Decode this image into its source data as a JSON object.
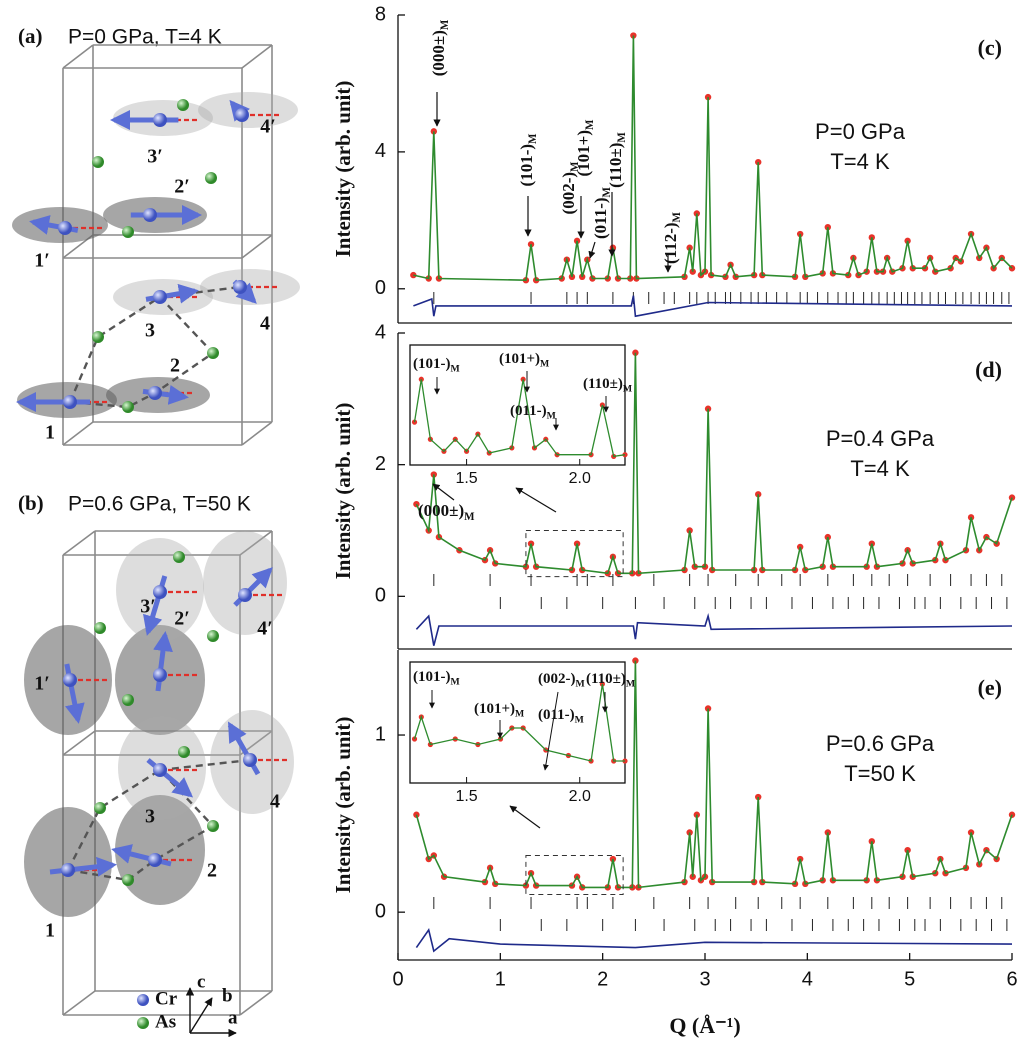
{
  "chart_data": [
    {
      "type": "line",
      "panel_label": "(c)",
      "conditions": [
        "P=0 GPa",
        "T=4 K"
      ],
      "ylabel": "Intensity (arb. unit)",
      "xlim": [
        0,
        6
      ],
      "ylim": [
        -1,
        8
      ],
      "yticks": [
        0,
        4,
        8
      ],
      "series": [
        {
          "x": [
            0.15,
            0.3,
            0.35,
            0.4,
            1.25,
            1.3,
            1.35,
            1.6,
            1.65,
            1.7,
            1.75,
            1.8,
            1.85,
            1.9,
            2.05,
            2.1,
            2.15,
            2.27,
            2.3,
            2.33,
            2.8,
            2.85,
            2.88,
            2.92,
            2.96,
            3.0,
            3.03,
            3.06,
            3.2,
            3.25,
            3.3,
            3.48,
            3.52,
            3.56,
            3.88,
            3.93,
            3.98,
            4.15,
            4.2,
            4.25,
            4.4,
            4.45,
            4.5,
            4.58,
            4.63,
            4.68,
            4.74,
            4.78,
            4.83,
            4.93,
            4.98,
            5.03,
            5.15,
            5.2,
            5.25,
            5.4,
            5.45,
            5.5,
            5.6,
            5.68,
            5.75,
            5.82,
            5.9,
            6.0
          ],
          "values": [
            0.4,
            0.3,
            4.6,
            0.3,
            0.25,
            1.3,
            0.25,
            0.3,
            0.85,
            0.35,
            1.4,
            0.35,
            0.85,
            0.3,
            0.3,
            1.2,
            0.3,
            0.3,
            7.4,
            0.3,
            0.35,
            1.2,
            0.5,
            2.2,
            0.4,
            0.5,
            5.6,
            0.4,
            0.35,
            0.7,
            0.35,
            0.4,
            3.7,
            0.4,
            0.35,
            1.6,
            0.35,
            0.45,
            1.8,
            0.45,
            0.4,
            0.9,
            0.4,
            0.5,
            1.5,
            0.5,
            0.5,
            0.9,
            0.5,
            0.6,
            1.4,
            0.6,
            0.6,
            0.9,
            0.5,
            0.6,
            0.9,
            0.8,
            1.6,
            0.9,
            1.2,
            0.6,
            0.9,
            0.6
          ],
          "color": "#2e8b2e",
          "marker_color": "#e8332a"
        },
        {
          "x": [
            0.15,
            0.33,
            0.35,
            0.37,
            2.28,
            2.3,
            2.32,
            3.03,
            6.0
          ],
          "values": [
            -0.5,
            -0.3,
            -0.8,
            -0.5,
            -0.5,
            -0.2,
            -0.8,
            -0.4,
            -0.5
          ],
          "color": "#1f2a8a"
        }
      ],
      "reflections": [
        [
          0.35,
          1.3,
          1.65,
          1.75,
          1.85,
          2.1,
          2.3,
          2.45,
          2.6,
          2.7,
          2.85,
          2.92,
          3.03,
          3.1,
          3.2,
          3.25,
          3.35,
          3.45,
          3.52,
          3.6,
          3.7,
          3.8,
          3.93,
          4.0,
          4.1,
          4.2,
          4.3,
          4.38,
          4.45,
          4.55,
          4.63,
          4.7,
          4.78,
          4.85,
          4.92,
          4.98,
          5.05,
          5.12,
          5.2,
          5.28,
          5.35,
          5.45,
          5.52,
          5.6,
          5.68,
          5.75,
          5.82,
          5.9,
          5.97
        ]
      ],
      "annotations": [
        {
          "text": "(000±)",
          "sub": "M"
        },
        {
          "text": "(101-)",
          "sub": "M"
        },
        {
          "text": "(002-)",
          "sub": "M"
        },
        {
          "text": "(101+)",
          "sub": "M"
        },
        {
          "text": "(011-)",
          "sub": "M"
        },
        {
          "text": "(110±)",
          "sub": "M"
        },
        {
          "text": "(112-)",
          "sub": "M"
        }
      ]
    },
    {
      "type": "line",
      "panel_label": "(d)",
      "conditions": [
        "P=0.4 GPa",
        "T=4 K"
      ],
      "ylabel": "Intensity (arb. unit)",
      "xlim": [
        0,
        6
      ],
      "ylim": [
        -0.8,
        4
      ],
      "yticks": [
        0,
        2,
        4
      ],
      "series": [
        {
          "x": [
            0.18,
            0.3,
            0.35,
            0.4,
            0.6,
            0.85,
            0.9,
            0.95,
            1.25,
            1.3,
            1.35,
            1.7,
            1.75,
            1.8,
            2.05,
            2.1,
            2.15,
            2.29,
            2.32,
            2.35,
            2.8,
            2.85,
            2.9,
            3.0,
            3.03,
            3.07,
            3.48,
            3.52,
            3.56,
            3.88,
            3.93,
            3.98,
            4.15,
            4.2,
            4.25,
            4.58,
            4.63,
            4.68,
            4.93,
            4.98,
            5.03,
            5.25,
            5.3,
            5.35,
            5.55,
            5.6,
            5.68,
            5.75,
            5.85,
            6.0
          ],
          "values": [
            1.4,
            1.0,
            1.85,
            0.9,
            0.7,
            0.55,
            0.7,
            0.5,
            0.45,
            0.8,
            0.45,
            0.4,
            0.8,
            0.4,
            0.35,
            0.6,
            0.35,
            0.35,
            3.7,
            0.35,
            0.4,
            1.0,
            0.45,
            0.45,
            2.85,
            0.4,
            0.4,
            1.55,
            0.4,
            0.4,
            0.75,
            0.4,
            0.45,
            0.9,
            0.45,
            0.45,
            0.8,
            0.45,
            0.5,
            0.7,
            0.5,
            0.55,
            0.8,
            0.55,
            0.7,
            1.2,
            0.7,
            0.9,
            0.8,
            1.5
          ],
          "color": "#2e8b2e",
          "marker_color": "#e8332a"
        },
        {
          "x": [
            0.18,
            0.3,
            0.35,
            0.4,
            1.5,
            2.3,
            2.32,
            2.34,
            3.0,
            3.03,
            3.06,
            6.0
          ],
          "values": [
            -0.5,
            -0.3,
            -0.75,
            -0.45,
            -0.45,
            -0.45,
            -0.65,
            -0.4,
            -0.45,
            -0.3,
            -0.5,
            -0.45
          ],
          "color": "#1f2a8a"
        }
      ],
      "reflections": [
        [
          0.35,
          0.9,
          1.3,
          1.75,
          1.85,
          2.1,
          2.5,
          2.85,
          3.03,
          3.3,
          3.52,
          3.75,
          3.93,
          4.2,
          4.45,
          4.63,
          4.8,
          4.98,
          5.2,
          5.4,
          5.6,
          5.75,
          5.9
        ],
        [
          1.0,
          1.4,
          1.65,
          2.0,
          2.32,
          2.6,
          2.9,
          3.1,
          3.25,
          3.45,
          3.6,
          3.85,
          4.05,
          4.25,
          4.4,
          4.55,
          4.7,
          4.9,
          5.05,
          5.15,
          5.3,
          5.5,
          5.65,
          5.8,
          5.95
        ]
      ],
      "annotations": [
        {
          "text": "(000±)",
          "sub": "M"
        }
      ],
      "inset": {
        "type": "line",
        "xlim": [
          1.25,
          2.2
        ],
        "ylim": [
          0.3,
          1.0
        ],
        "xticks": [
          1.5,
          {
            "value": 2,
            "label": "2.0"
          }
        ],
        "series": [
          {
            "x": [
              1.27,
              1.3,
              1.34,
              1.4,
              1.45,
              1.5,
              1.55,
              1.6,
              1.7,
              1.75,
              1.8,
              1.85,
              1.9,
              2.05,
              2.1,
              2.15,
              2.2
            ],
            "values": [
              0.55,
              0.8,
              0.45,
              0.38,
              0.45,
              0.38,
              0.48,
              0.37,
              0.4,
              0.8,
              0.4,
              0.45,
              0.36,
              0.36,
              0.65,
              0.35,
              0.36
            ],
            "color": "#2e8b2e",
            "marker_color": "#e8332a"
          }
        ],
        "annotations": [
          {
            "text": "(101-)",
            "sub": "M"
          },
          {
            "text": "(101+)",
            "sub": "M"
          },
          {
            "text": "(011-)",
            "sub": "M"
          },
          {
            "text": "(110±)",
            "sub": "M"
          }
        ]
      }
    },
    {
      "type": "line",
      "panel_label": "(e)",
      "conditions": [
        "P=0.6 GPa",
        "T=50 K"
      ],
      "ylabel": "Intensity (arb. unit)",
      "xlabel": "Q (Å⁻¹)",
      "xlim": [
        0,
        6
      ],
      "ylim": [
        -0.27,
        1.48
      ],
      "yticks": [
        0,
        1
      ],
      "xticks": [
        0,
        1,
        2,
        3,
        4,
        5,
        6
      ],
      "series": [
        {
          "x": [
            0.18,
            0.3,
            0.35,
            0.45,
            0.85,
            0.9,
            0.95,
            1.25,
            1.3,
            1.35,
            1.7,
            1.75,
            1.8,
            2.05,
            2.1,
            2.15,
            2.29,
            2.32,
            2.35,
            2.8,
            2.85,
            2.88,
            2.92,
            2.96,
            3.0,
            3.03,
            3.07,
            3.48,
            3.52,
            3.56,
            3.88,
            3.93,
            3.98,
            4.15,
            4.2,
            4.25,
            4.58,
            4.63,
            4.68,
            4.93,
            4.98,
            5.03,
            5.25,
            5.3,
            5.35,
            5.55,
            5.6,
            5.68,
            5.75,
            5.85,
            6.0
          ],
          "values": [
            0.55,
            0.3,
            0.32,
            0.2,
            0.17,
            0.25,
            0.16,
            0.15,
            0.22,
            0.15,
            0.15,
            0.2,
            0.14,
            0.14,
            0.3,
            0.14,
            0.14,
            1.42,
            0.14,
            0.17,
            0.45,
            0.2,
            0.55,
            0.18,
            0.2,
            1.15,
            0.17,
            0.17,
            0.65,
            0.17,
            0.16,
            0.3,
            0.16,
            0.18,
            0.45,
            0.18,
            0.18,
            0.4,
            0.18,
            0.2,
            0.35,
            0.2,
            0.22,
            0.3,
            0.22,
            0.25,
            0.45,
            0.27,
            0.35,
            0.3,
            0.55
          ],
          "color": "#2e8b2e",
          "marker_color": "#e8332a"
        },
        {
          "x": [
            0.18,
            0.3,
            0.35,
            0.5,
            1.0,
            2.32,
            3.0,
            6.0
          ],
          "values": [
            -0.2,
            -0.1,
            -0.22,
            -0.15,
            -0.18,
            -0.2,
            -0.17,
            -0.18
          ],
          "color": "#1f2a8a"
        }
      ],
      "reflections": [
        [
          0.35,
          0.9,
          1.3,
          1.75,
          1.85,
          2.1,
          2.5,
          2.85,
          3.03,
          3.3,
          3.52,
          3.75,
          3.93,
          4.2,
          4.45,
          4.63,
          4.8,
          4.98,
          5.2,
          5.4,
          5.6,
          5.75,
          5.9
        ],
        [
          1.0,
          1.4,
          1.65,
          2.0,
          2.32,
          2.6,
          2.9,
          3.1,
          3.25,
          3.45,
          3.6,
          3.85,
          4.05,
          4.25,
          4.4,
          4.55,
          4.7,
          4.9,
          5.05,
          5.15,
          5.3,
          5.5,
          5.65,
          5.8,
          5.95
        ]
      ],
      "inset": {
        "type": "line",
        "xlim": [
          1.25,
          2.2
        ],
        "ylim": [
          0.1,
          0.32
        ],
        "xticks": [
          1.5,
          {
            "value": 2,
            "label": "2.0"
          }
        ],
        "series": [
          {
            "x": [
              1.27,
              1.3,
              1.34,
              1.45,
              1.55,
              1.65,
              1.7,
              1.75,
              1.85,
              1.95,
              2.05,
              2.1,
              2.15,
              2.2
            ],
            "values": [
              0.18,
              0.22,
              0.17,
              0.18,
              0.17,
              0.18,
              0.2,
              0.2,
              0.16,
              0.15,
              0.14,
              0.28,
              0.14,
              0.14
            ],
            "color": "#2e8b2e",
            "marker_color": "#e8332a"
          }
        ],
        "annotations": [
          {
            "text": "(101-)",
            "sub": "M"
          },
          {
            "text": "(101+)",
            "sub": "M"
          },
          {
            "text": "(002-)",
            "sub": "M"
          },
          {
            "text": "(011-)",
            "sub": "M"
          },
          {
            "text": "(110±)",
            "sub": "M"
          }
        ]
      }
    }
  ],
  "structures": [
    {
      "label": "(a)",
      "conditions": "P=0 GPa, T=4 K",
      "sites": [
        "1′",
        "2′",
        "3′",
        "4′",
        "1",
        "2",
        "3",
        "4"
      ]
    },
    {
      "label": "(b)",
      "conditions": "P=0.6 GPa, T=50 K",
      "sites": [
        "1′",
        "2′",
        "3′",
        "4′",
        "1",
        "2",
        "3",
        "4"
      ]
    }
  ],
  "legend": {
    "items": [
      "Cr",
      "As"
    ],
    "axes": [
      "c",
      "b",
      "a"
    ]
  }
}
